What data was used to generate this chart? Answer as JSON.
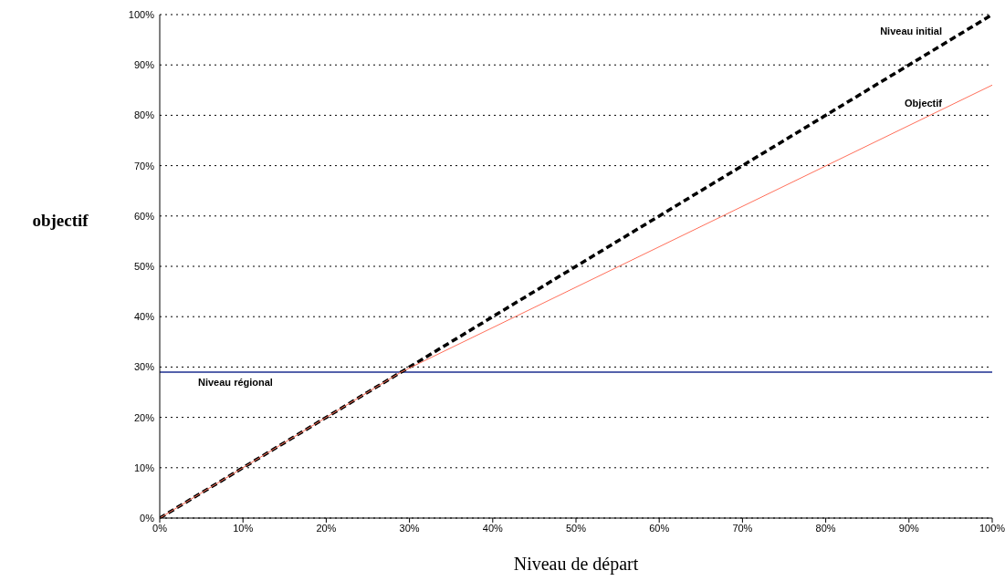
{
  "chart_data": {
    "type": "line",
    "xlabel": "Niveau de départ",
    "ylabel": "objectif",
    "series": [
      {
        "name": "Niveau initial",
        "color": "#000000",
        "line_style": "dashed",
        "x": [
          0,
          100
        ],
        "values": [
          0,
          100
        ]
      },
      {
        "name": "Objectif",
        "color": "#ff6f5a",
        "line_style": "solid",
        "x": [
          0,
          29,
          100
        ],
        "values": [
          0,
          29,
          86
        ]
      }
    ],
    "ref_lines": [
      {
        "axis": "y",
        "value": 29,
        "label": "Niveau régional",
        "color": "#1c2e8f",
        "line_style": "solid"
      }
    ],
    "xlim": [
      0,
      100
    ],
    "ylim": [
      0,
      100
    ],
    "xticks": [
      {
        "value": 0,
        "label": "0%"
      },
      {
        "value": 10,
        "label": "10%"
      },
      {
        "value": 20,
        "label": "20%"
      },
      {
        "value": 30,
        "label": "30%"
      },
      {
        "value": 40,
        "label": "40%"
      },
      {
        "value": 50,
        "label": "50%"
      },
      {
        "value": 60,
        "label": "60%"
      },
      {
        "value": 70,
        "label": "70%"
      },
      {
        "value": 80,
        "label": "80%"
      },
      {
        "value": 90,
        "label": "90%"
      },
      {
        "value": 100,
        "label": "100%"
      }
    ],
    "yticks": [
      {
        "value": 0,
        "label": "0%"
      },
      {
        "value": 10,
        "label": "10%"
      },
      {
        "value": 20,
        "label": "20%"
      },
      {
        "value": 30,
        "label": "30%"
      },
      {
        "value": 40,
        "label": "40%"
      },
      {
        "value": 50,
        "label": "50%"
      },
      {
        "value": 60,
        "label": "60%"
      },
      {
        "value": 70,
        "label": "70%"
      },
      {
        "value": 80,
        "label": "80%"
      },
      {
        "value": 90,
        "label": "90%"
      },
      {
        "value": 100,
        "label": "100%"
      }
    ],
    "grid": "y",
    "marker": "none",
    "legend": false
  }
}
